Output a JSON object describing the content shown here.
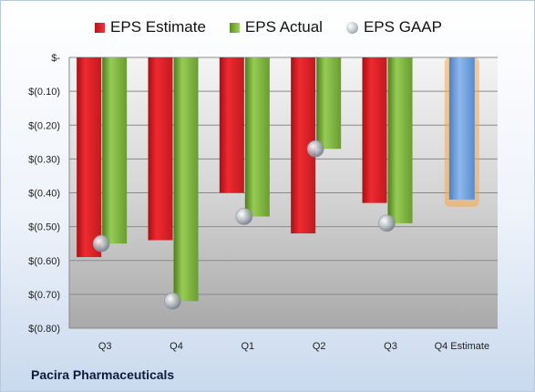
{
  "legend": [
    {
      "label": "EPS Estimate",
      "color": "#e01f25",
      "icon": "red-square"
    },
    {
      "label": "EPS Actual",
      "color": "#7fb63e",
      "icon": "green-square"
    },
    {
      "label": "EPS GAAP",
      "color": "#a9b0ba",
      "icon": "gray-sphere"
    }
  ],
  "company": "Pacira Pharmaceuticals",
  "colors": {
    "estimate": "#e01f25",
    "actual": "#7fb63e",
    "gaap": "#a9b0ba",
    "forecast": "#6f9fd8",
    "forecast_glow": "#f5a84a"
  },
  "chart_data": {
    "type": "bar",
    "categories": [
      "Q3",
      "Q4",
      "Q1",
      "Q2",
      "Q3",
      "Q4 Estimate"
    ],
    "series": [
      {
        "name": "EPS Estimate",
        "values": [
          -0.59,
          -0.54,
          -0.4,
          -0.52,
          -0.43,
          null
        ]
      },
      {
        "name": "EPS Actual",
        "values": [
          -0.55,
          -0.72,
          -0.47,
          -0.27,
          -0.49,
          null
        ]
      },
      {
        "name": "EPS GAAP",
        "values": [
          -0.55,
          -0.72,
          -0.47,
          -0.27,
          -0.49,
          null
        ]
      }
    ],
    "forecast": {
      "category": "Q4 Estimate",
      "value": -0.42
    },
    "yticks": [
      "$-",
      "$(0.10)",
      "$(0.20)",
      "$(0.30)",
      "$(0.40)",
      "$(0.50)",
      "$(0.60)",
      "$(0.70)",
      "$(0.80)"
    ],
    "ylim": [
      -0.8,
      0
    ],
    "grid": true,
    "legend_position": "top-center"
  }
}
